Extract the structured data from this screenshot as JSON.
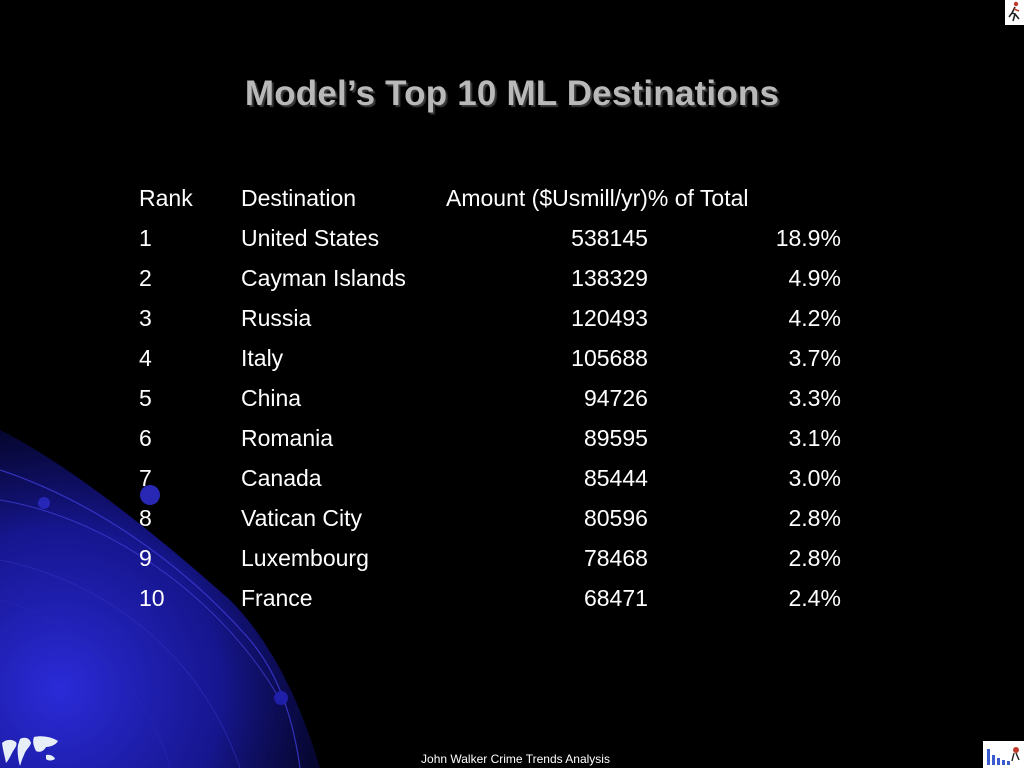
{
  "slide": {
    "title": "Model’s Top 10 ML Destinations",
    "footer": "John Walker Crime Trends Analysis"
  },
  "table": {
    "headers": [
      "Rank",
      "Destination",
      "Amount ($Usmill/yr)",
      "% of Total"
    ],
    "rows": [
      [
        "1",
        "United States",
        "538145",
        "18.9%"
      ],
      [
        "2",
        "Cayman Islands",
        "138329",
        "4.9%"
      ],
      [
        "3",
        "Russia",
        "120493",
        "4.2%"
      ],
      [
        "4",
        "Italy",
        "105688",
        "3.7%"
      ],
      [
        "5",
        "China",
        "94726",
        "3.3%"
      ],
      [
        "6",
        "Romania",
        "89595",
        "3.1%"
      ],
      [
        "7",
        "Canada",
        "85444",
        "3.0%"
      ],
      [
        "8",
        "Vatican City",
        "80596",
        "2.8%"
      ],
      [
        "9",
        "Luxembourg",
        "78468",
        "2.8%"
      ],
      [
        "10",
        "France",
        "68471",
        "2.4%"
      ]
    ]
  },
  "icons": {
    "top_right": "running-figure-icon",
    "bottom_right": "bar-chart-icon",
    "bottom_left": "world-map-icon"
  },
  "colors": {
    "background": "#000000",
    "title": "#b9b9b9",
    "text": "#ffffff",
    "accent_blue": "#1a1aa8"
  }
}
